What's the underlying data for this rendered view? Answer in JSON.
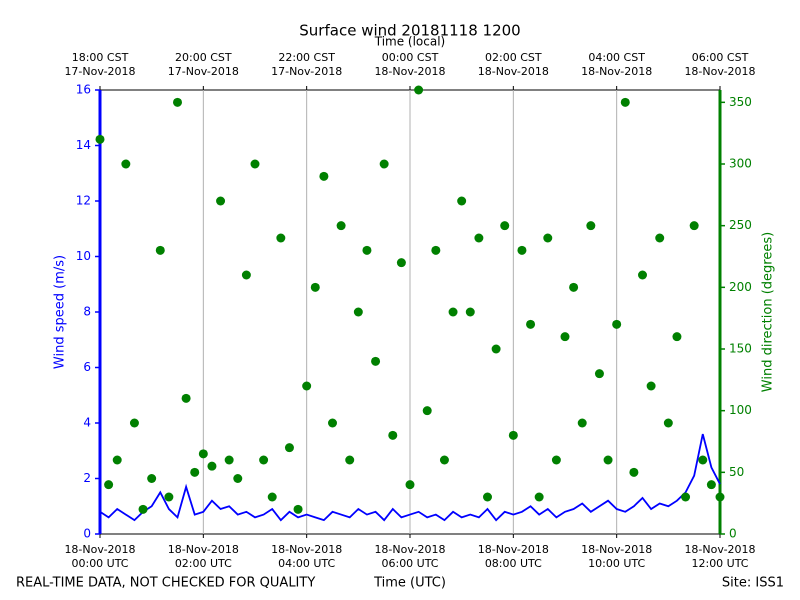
{
  "chart_data": {
    "type": "line",
    "title": "Surface wind 20181118 1200",
    "x_label": "Time (UTC)",
    "x2_label": "Time (local)",
    "ylabel": "Wind speed (m/s)",
    "y2label": "Wind direction (degrees)",
    "note": "REAL-TIME DATA, NOT CHECKED FOR QUALITY",
    "site": "Site: ISS1",
    "grid": "x",
    "xlim": [
      "2018-11-18T00:00",
      "2018-11-18T12:00"
    ],
    "xticks": [
      {
        "value": "2018-11-18T00:00",
        "label": [
          "18-Nov-2018",
          "00:00 UTC"
        ]
      },
      {
        "value": "2018-11-18T02:00",
        "label": [
          "18-Nov-2018",
          "02:00 UTC"
        ]
      },
      {
        "value": "2018-11-18T04:00",
        "label": [
          "18-Nov-2018",
          "04:00 UTC"
        ]
      },
      {
        "value": "2018-11-18T06:00",
        "label": [
          "18-Nov-2018",
          "06:00 UTC"
        ]
      },
      {
        "value": "2018-11-18T08:00",
        "label": [
          "18-Nov-2018",
          "08:00 UTC"
        ]
      },
      {
        "value": "2018-11-18T10:00",
        "label": [
          "18-Nov-2018",
          "10:00 UTC"
        ]
      },
      {
        "value": "2018-11-18T12:00",
        "label": [
          "18-Nov-2018",
          "12:00 UTC"
        ]
      }
    ],
    "x2ticks": [
      {
        "value": "2018-11-18T00:00",
        "label": [
          "18:00 CST",
          "17-Nov-2018"
        ]
      },
      {
        "value": "2018-11-18T02:00",
        "label": [
          "20:00 CST",
          "17-Nov-2018"
        ]
      },
      {
        "value": "2018-11-18T04:00",
        "label": [
          "22:00 CST",
          "17-Nov-2018"
        ]
      },
      {
        "value": "2018-11-18T06:00",
        "label": [
          "00:00 CST",
          "18-Nov-2018"
        ]
      },
      {
        "value": "2018-11-18T08:00",
        "label": [
          "02:00 CST",
          "18-Nov-2018"
        ]
      },
      {
        "value": "2018-11-18T10:00",
        "label": [
          "04:00 CST",
          "18-Nov-2018"
        ]
      },
      {
        "value": "2018-11-18T12:00",
        "label": [
          "06:00 CST",
          "18-Nov-2018"
        ]
      }
    ],
    "ylim": [
      0,
      16
    ],
    "yticks": [
      0,
      2,
      4,
      6,
      8,
      10,
      12,
      14,
      16
    ],
    "y2lim": [
      0,
      360
    ],
    "y2ticks": [
      0,
      50,
      100,
      150,
      200,
      250,
      300,
      350
    ],
    "x": [
      "2018-11-18T00:00",
      "2018-11-18T00:10",
      "2018-11-18T00:20",
      "2018-11-18T00:30",
      "2018-11-18T00:40",
      "2018-11-18T00:50",
      "2018-11-18T01:00",
      "2018-11-18T01:10",
      "2018-11-18T01:20",
      "2018-11-18T01:30",
      "2018-11-18T01:40",
      "2018-11-18T01:50",
      "2018-11-18T02:00",
      "2018-11-18T02:10",
      "2018-11-18T02:20",
      "2018-11-18T02:30",
      "2018-11-18T02:40",
      "2018-11-18T02:50",
      "2018-11-18T03:00",
      "2018-11-18T03:10",
      "2018-11-18T03:20",
      "2018-11-18T03:30",
      "2018-11-18T03:40",
      "2018-11-18T03:50",
      "2018-11-18T04:00",
      "2018-11-18T04:10",
      "2018-11-18T04:20",
      "2018-11-18T04:30",
      "2018-11-18T04:40",
      "2018-11-18T04:50",
      "2018-11-18T05:00",
      "2018-11-18T05:10",
      "2018-11-18T05:20",
      "2018-11-18T05:30",
      "2018-11-18T05:40",
      "2018-11-18T05:50",
      "2018-11-18T06:00",
      "2018-11-18T06:10",
      "2018-11-18T06:20",
      "2018-11-18T06:30",
      "2018-11-18T06:40",
      "2018-11-18T06:50",
      "2018-11-18T07:00",
      "2018-11-18T07:10",
      "2018-11-18T07:20",
      "2018-11-18T07:30",
      "2018-11-18T07:40",
      "2018-11-18T07:50",
      "2018-11-18T08:00",
      "2018-11-18T08:10",
      "2018-11-18T08:20",
      "2018-11-18T08:30",
      "2018-11-18T08:40",
      "2018-11-18T08:50",
      "2018-11-18T09:00",
      "2018-11-18T09:10",
      "2018-11-18T09:20",
      "2018-11-18T09:30",
      "2018-11-18T09:40",
      "2018-11-18T09:50",
      "2018-11-18T10:00",
      "2018-11-18T10:10",
      "2018-11-18T10:20",
      "2018-11-18T10:30",
      "2018-11-18T10:40",
      "2018-11-18T10:50",
      "2018-11-18T11:00",
      "2018-11-18T11:10",
      "2018-11-18T11:20",
      "2018-11-18T11:30",
      "2018-11-18T11:40",
      "2018-11-18T11:50",
      "2018-11-18T12:00"
    ],
    "series": [
      {
        "type": "line",
        "color": "#0000ff",
        "values": [
          0.8,
          0.6,
          0.9,
          0.7,
          0.5,
          0.8,
          1.0,
          1.5,
          0.9,
          0.6,
          1.7,
          0.7,
          0.8,
          1.2,
          0.9,
          1.0,
          0.7,
          0.8,
          0.6,
          0.7,
          0.9,
          0.5,
          0.8,
          0.6,
          0.7,
          0.6,
          0.5,
          0.8,
          0.7,
          0.6,
          0.9,
          0.7,
          0.8,
          0.5,
          0.9,
          0.6,
          0.7,
          0.8,
          0.6,
          0.7,
          0.5,
          0.8,
          0.6,
          0.7,
          0.6,
          0.9,
          0.5,
          0.8,
          0.7,
          0.8,
          1.0,
          0.7,
          0.9,
          0.6,
          0.8,
          0.9,
          1.1,
          0.8,
          1.0,
          1.2,
          0.9,
          0.8,
          1.0,
          1.3,
          0.9,
          1.1,
          1.0,
          1.2,
          1.5,
          2.1,
          3.6,
          2.4,
          1.8
        ]
      },
      {
        "type": "scatter",
        "color": "#008000",
        "axis": "y2",
        "values": [
          320,
          40,
          60,
          300,
          90,
          20,
          45,
          230,
          30,
          350,
          110,
          50,
          65,
          55,
          270,
          60,
          45,
          210,
          300,
          60,
          30,
          240,
          70,
          20,
          120,
          200,
          290,
          90,
          250,
          60,
          180,
          230,
          140,
          300,
          80,
          220,
          40,
          360,
          100,
          230,
          60,
          180,
          270,
          180,
          240,
          30,
          150,
          250,
          80,
          230,
          170,
          30,
          240,
          60,
          160,
          200,
          90,
          250,
          130,
          60,
          170,
          350,
          50,
          210,
          120,
          240,
          90,
          160,
          30,
          250,
          60,
          40,
          30
        ]
      }
    ]
  }
}
